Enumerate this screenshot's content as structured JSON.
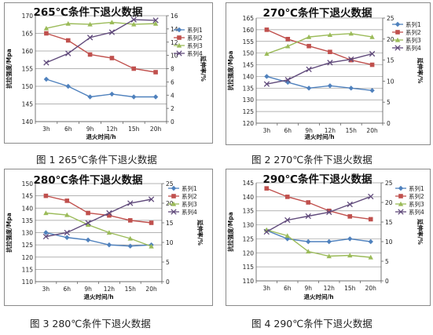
{
  "captions": [
    "图 1  265℃条件下退火数据",
    "图 2  270℃条件下退火数据",
    "图 3    280℃条件下退火数据",
    "图 4  290℃条件下退火数据"
  ],
  "colors": {
    "系列1": "#4f81bd",
    "系列2": "#c0504d",
    "系列3": "#9bbb59",
    "系列4": "#604a7b"
  },
  "markers": {
    "系列1": "diamond",
    "系列2": "square",
    "系列3": "triangle",
    "系列4": "x"
  },
  "chart_data": [
    {
      "type": "line",
      "title": "265℃条件下退火数据",
      "xlabel": "退火时间/h",
      "ylabel_left": "抗拉强度/Mpa",
      "ylabel_right": "延伸率/%",
      "categories": [
        "3h",
        "6h",
        "9h",
        "12h",
        "15h",
        "20h"
      ],
      "ylim_left": [
        140,
        170
      ],
      "yticks_left": [
        140,
        145,
        150,
        155,
        160,
        165,
        170
      ],
      "ylim_right": [
        0,
        16
      ],
      "yticks_right": [
        0,
        2,
        4,
        6,
        8,
        10,
        12,
        14,
        16
      ],
      "gridlines": true,
      "legend_position": "right",
      "series": [
        {
          "name": "系列1",
          "axis": "left",
          "values": [
            152,
            150,
            147,
            147.8,
            147,
            147
          ]
        },
        {
          "name": "系列2",
          "axis": "left",
          "values": [
            165,
            163,
            159,
            158,
            155,
            154
          ]
        },
        {
          "name": "系列3",
          "axis": "right",
          "values": [
            14.1,
            14.8,
            14.7,
            15,
            14.7,
            14.8
          ]
        },
        {
          "name": "系列4",
          "axis": "right",
          "values": [
            8.9,
            10.3,
            12.7,
            13.5,
            15.4,
            15.3
          ]
        }
      ]
    },
    {
      "type": "line",
      "title": "270℃条件下退火数据",
      "xlabel": "退火时间/h",
      "ylabel_left": "抗拉强度/Mpa",
      "ylabel_right": "延伸率/%",
      "categories": [
        "3h",
        "6h",
        "9h",
        "12h",
        "15h",
        "20h"
      ],
      "ylim_left": [
        120,
        165
      ],
      "yticks_left": [
        120,
        125,
        130,
        135,
        140,
        145,
        150,
        155,
        160,
        165
      ],
      "ylim_right": [
        0,
        25
      ],
      "yticks_right": [
        0,
        5,
        10,
        15,
        20,
        25
      ],
      "gridlines": true,
      "legend_position": "right",
      "series": [
        {
          "name": "系列1",
          "axis": "left",
          "values": [
            140,
            137.5,
            135,
            136,
            135,
            134
          ]
        },
        {
          "name": "系列2",
          "axis": "left",
          "values": [
            160,
            156,
            153,
            150.5,
            147,
            145
          ]
        },
        {
          "name": "系列3",
          "axis": "right",
          "values": [
            16.5,
            18.3,
            20.5,
            21,
            21.3,
            20.5
          ]
        },
        {
          "name": "系列4",
          "axis": "right",
          "values": [
            9.3,
            10.3,
            12.8,
            14.4,
            15.2,
            16.5
          ]
        }
      ]
    },
    {
      "type": "line",
      "title": "280℃条件下退火数据",
      "xlabel": "退火时间/h",
      "ylabel_left": "抗拉强度/Mpa",
      "ylabel_right": "延伸率/%",
      "categories": [
        "3h",
        "6h",
        "9h",
        "12h",
        "15h",
        "20h"
      ],
      "ylim_left": [
        110,
        150
      ],
      "yticks_left": [
        110,
        115,
        120,
        125,
        130,
        135,
        140,
        145,
        150
      ],
      "ylim_right": [
        0,
        25
      ],
      "yticks_right": [
        0,
        5,
        10,
        15,
        20,
        25
      ],
      "gridlines": true,
      "legend_position": "right",
      "series": [
        {
          "name": "系列1",
          "axis": "left",
          "values": [
            130,
            128,
            127,
            125,
            124.5,
            125
          ]
        },
        {
          "name": "系列2",
          "axis": "left",
          "values": [
            145,
            143,
            138,
            137,
            135,
            134
          ]
        },
        {
          "name": "系列3",
          "axis": "right",
          "values": [
            17.5,
            17,
            14.5,
            12.5,
            11,
            9
          ]
        },
        {
          "name": "系列4",
          "axis": "right",
          "values": [
            11.5,
            12.5,
            15,
            17.5,
            20,
            21
          ]
        }
      ]
    },
    {
      "type": "line",
      "title": "290℃条件下退火数据",
      "xlabel": "退火时间/h",
      "ylabel_left": "抗拉强度/Mpa",
      "ylabel_right": "延伸率/%",
      "categories": [
        "3h",
        "6h",
        "9h",
        "12h",
        "15h",
        "20h"
      ],
      "ylim_left": [
        110,
        145
      ],
      "yticks_left": [
        110,
        115,
        120,
        125,
        130,
        135,
        140,
        145
      ],
      "ylim_right": [
        0,
        25
      ],
      "yticks_right": [
        0,
        5,
        10,
        15,
        20,
        25
      ],
      "gridlines": true,
      "legend_position": "right",
      "series": [
        {
          "name": "系列1",
          "axis": "left",
          "values": [
            128,
            125,
            124,
            124,
            125,
            124
          ]
        },
        {
          "name": "系列2",
          "axis": "left",
          "values": [
            143,
            140,
            138,
            135,
            133,
            132
          ]
        },
        {
          "name": "系列3",
          "axis": "right",
          "values": [
            13,
            11.5,
            7.5,
            6.3,
            6.5,
            6
          ]
        },
        {
          "name": "系列4",
          "axis": "right",
          "values": [
            12.5,
            15.5,
            16.5,
            17.5,
            19.5,
            21.5
          ]
        }
      ]
    }
  ]
}
